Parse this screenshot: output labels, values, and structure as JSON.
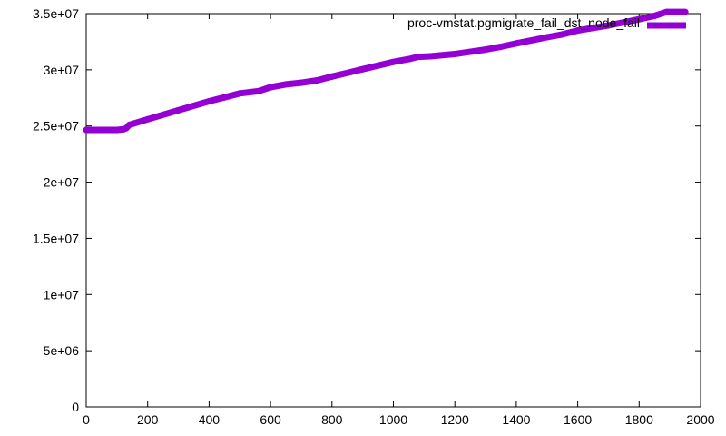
{
  "chart_data": {
    "type": "line",
    "title": "",
    "xlabel": "",
    "ylabel": "",
    "xlim": [
      0,
      2000
    ],
    "ylim": [
      0,
      35000000
    ],
    "x_ticks": [
      0,
      200,
      400,
      600,
      800,
      1000,
      1200,
      1400,
      1600,
      1800,
      2000
    ],
    "x_tick_labels": [
      "0",
      "200",
      "400",
      "600",
      "800",
      "1000",
      "1200",
      "1400",
      "1600",
      "1800",
      "2000"
    ],
    "y_ticks": [
      0,
      5000000,
      10000000,
      15000000,
      20000000,
      25000000,
      30000000,
      35000000
    ],
    "y_tick_labels": [
      "0",
      "5e+06",
      "1e+07",
      "1.5e+07",
      "2e+07",
      "2.5e+07",
      "3e+07",
      "3.5e+07"
    ],
    "grid": false,
    "legend_position": "top-right",
    "series": [
      {
        "name": "proc-vmstat.pgmigrate_fail_dst_node_fail",
        "color": "#9400d3",
        "x": [
          0,
          50,
          100,
          120,
          130,
          140,
          200,
          300,
          400,
          450,
          500,
          560,
          600,
          650,
          700,
          750,
          800,
          900,
          1000,
          1050,
          1080,
          1120,
          1200,
          1300,
          1350,
          1400,
          1500,
          1550,
          1600,
          1700,
          1800,
          1850,
          1890,
          1950
        ],
        "y": [
          24650000,
          24650000,
          24650000,
          24700000,
          24800000,
          25100000,
          25600000,
          26400000,
          27200000,
          27550000,
          27900000,
          28100000,
          28450000,
          28700000,
          28850000,
          29050000,
          29400000,
          30050000,
          30700000,
          30950000,
          31150000,
          31200000,
          31400000,
          31800000,
          32050000,
          32350000,
          32900000,
          33150000,
          33500000,
          33950000,
          34500000,
          34800000,
          35150000,
          35150000
        ]
      }
    ]
  }
}
